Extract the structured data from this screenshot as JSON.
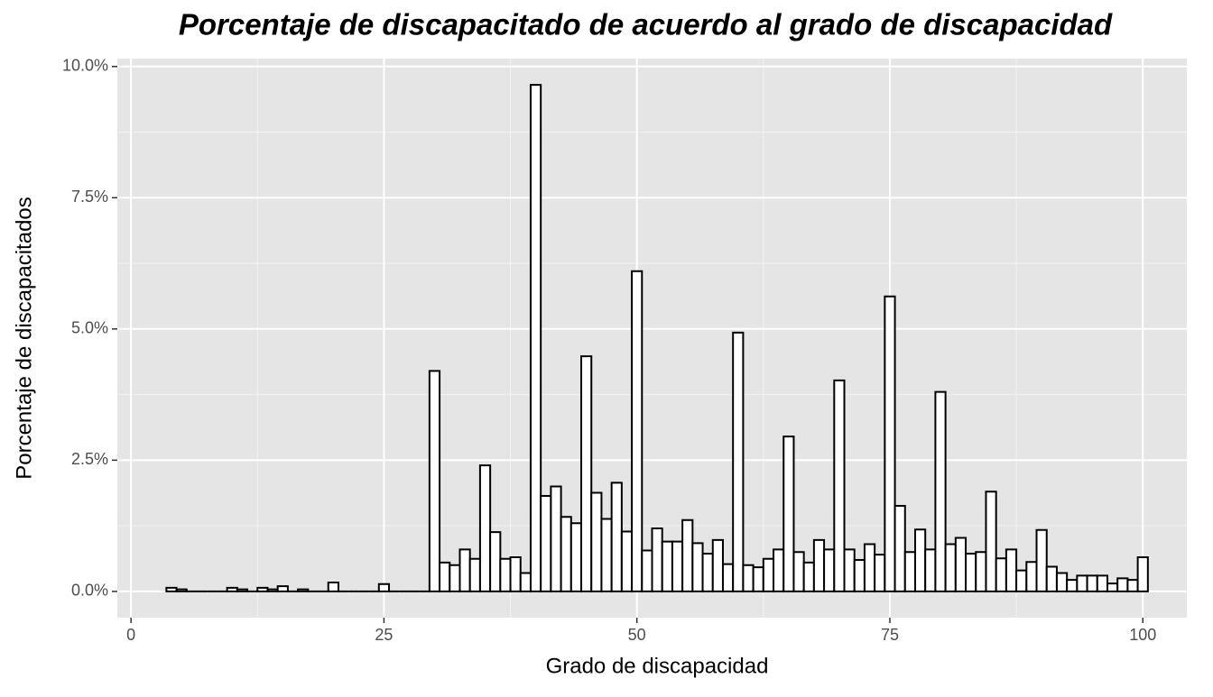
{
  "chart_data": {
    "type": "histogram",
    "title": "Porcentaje de discapacitado de acuerdo al grado de discapacidad",
    "x_label": "Grado de discapacidad",
    "y_label": "Porcentaje de discapacitados",
    "bins": [
      3.5,
      4.5,
      5.5,
      6.5,
      7.5,
      8.5,
      9.5,
      10.5,
      11.5,
      12.5,
      13.5,
      14.5,
      15.5,
      16.5,
      17.5,
      18.5,
      19.5,
      20.5,
      21.5,
      22.5,
      23.5,
      24.5,
      25.5,
      26.5,
      27.5,
      28.5,
      29.5,
      30.5,
      31.5,
      32.5,
      33.5,
      34.5,
      35.5,
      36.5,
      37.5,
      38.5,
      39.5,
      40.5,
      41.5,
      42.5,
      43.5,
      44.5,
      45.5,
      46.5,
      47.5,
      48.5,
      49.5,
      50.5,
      51.5,
      52.5,
      53.5,
      54.5,
      55.5,
      56.5,
      57.5,
      58.5,
      59.5,
      60.5,
      61.5,
      62.5,
      63.5,
      64.5,
      65.5,
      66.5,
      67.5,
      68.5,
      69.5,
      70.5,
      71.5,
      72.5,
      73.5,
      74.5,
      75.5,
      76.5,
      77.5,
      78.5,
      79.5,
      80.5,
      81.5,
      82.5,
      83.5,
      84.5,
      85.5,
      86.5,
      87.5,
      88.5,
      89.5,
      90.5,
      91.5,
      92.5,
      93.5,
      94.5,
      95.5,
      96.5,
      97.5,
      98.5,
      99.5,
      100.5
    ],
    "values": [
      0.07,
      0.04,
      0,
      0,
      0,
      0,
      0.07,
      0.04,
      0,
      0.07,
      0.04,
      0.1,
      0,
      0.04,
      0,
      0,
      0.17,
      0,
      0,
      0,
      0,
      0.14,
      0,
      0,
      0,
      0,
      4.2,
      0.55,
      0.5,
      0.8,
      0.62,
      2.4,
      1.13,
      0.62,
      0.65,
      0.35,
      9.65,
      1.82,
      2.0,
      1.42,
      1.3,
      4.48,
      1.88,
      1.38,
      2.07,
      1.14,
      6.1,
      0.78,
      1.2,
      0.95,
      0.95,
      1.36,
      0.92,
      0.72,
      0.98,
      0.52,
      4.93,
      0.5,
      0.46,
      0.62,
      0.8,
      2.95,
      0.75,
      0.55,
      0.98,
      0.8,
      4.02,
      0.8,
      0.6,
      0.9,
      0.7,
      5.62,
      1.63,
      0.75,
      1.18,
      0.8,
      3.8,
      0.9,
      1.02,
      0.72,
      0.75,
      1.9,
      0.63,
      0.8,
      0.4,
      0.56,
      1.17,
      0.47,
      0.35,
      0.22,
      0.3,
      0.3,
      0.3,
      0.15,
      0.25,
      0.22,
      0.65
    ],
    "fill": "#ffffff",
    "edge_color": "#000000",
    "xlim": [
      -1.35,
      104.35
    ],
    "ylim": [
      -0.5,
      10.15
    ],
    "xticks": [
      0,
      25,
      50,
      75,
      100
    ],
    "yticks": [
      {
        "value": 0,
        "label": "0.0%"
      },
      {
        "value": 2.5,
        "label": "2.5%"
      },
      {
        "value": 5,
        "label": "5.0%"
      },
      {
        "value": 7.5,
        "label": "7.5%"
      },
      {
        "value": 10,
        "label": "10.0%"
      }
    ],
    "xminor": [
      12.5,
      37.5,
      62.5,
      87.5
    ],
    "yminor": [
      1.25,
      3.75,
      6.25,
      8.75
    ],
    "grid": true
  }
}
